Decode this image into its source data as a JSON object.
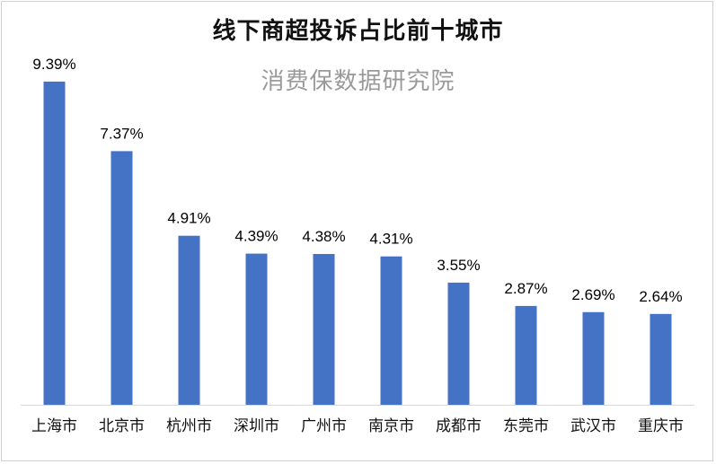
{
  "chart_data": {
    "type": "bar",
    "title": "线下商超投诉占比前十城市",
    "watermark": "消费保数据研究院",
    "categories": [
      "上海市",
      "北京市",
      "杭州市",
      "深圳市",
      "广州市",
      "南京市",
      "成都市",
      "东莞市",
      "武汉市",
      "重庆市"
    ],
    "values": [
      9.39,
      7.37,
      4.91,
      4.39,
      4.38,
      4.31,
      3.55,
      2.87,
      2.69,
      2.64
    ],
    "value_labels": [
      "9.39%",
      "7.37%",
      "4.91%",
      "4.39%",
      "4.38%",
      "4.31%",
      "3.55%",
      "2.87%",
      "2.69%",
      "2.64%"
    ],
    "ylim": [
      0,
      10
    ],
    "grid": false,
    "legend": "none",
    "bar_color": "#4472C4",
    "axis_color": "#d9d9d9"
  }
}
